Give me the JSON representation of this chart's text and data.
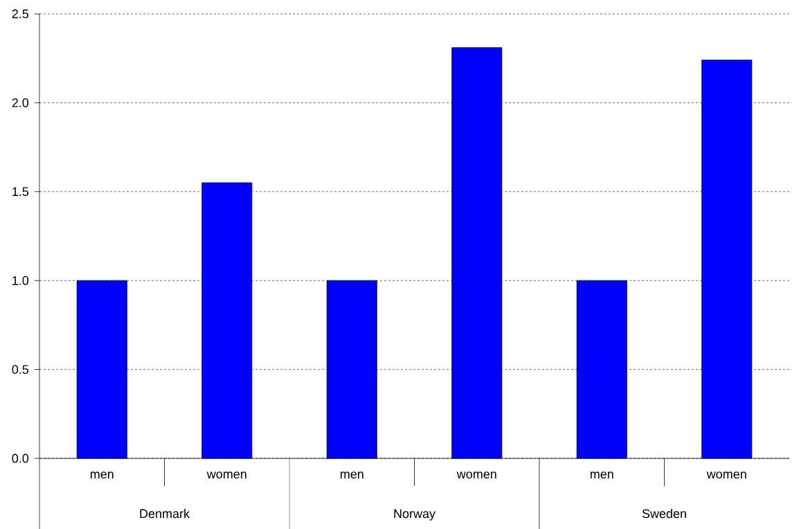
{
  "chart_data": {
    "type": "bar",
    "categories": [
      "men",
      "women",
      "men",
      "women",
      "men",
      "women"
    ],
    "values": [
      1.0,
      1.55,
      1.0,
      2.31,
      1.0,
      2.24
    ],
    "color": "#0000ff",
    "ylim": [
      0,
      2.5
    ],
    "yticks": [
      {
        "value": 0,
        "label": "0.0"
      },
      {
        "value": 0.5,
        "label": "0.5"
      },
      {
        "value": 1,
        "label": "1.0"
      },
      {
        "value": 1.5,
        "label": "1.5"
      },
      {
        "value": 2,
        "label": "2.0"
      },
      {
        "value": 2.5,
        "label": "2.5"
      }
    ],
    "grid": "y",
    "annotations": [
      "Denmark",
      "Norway",
      "Sweden"
    ]
  }
}
